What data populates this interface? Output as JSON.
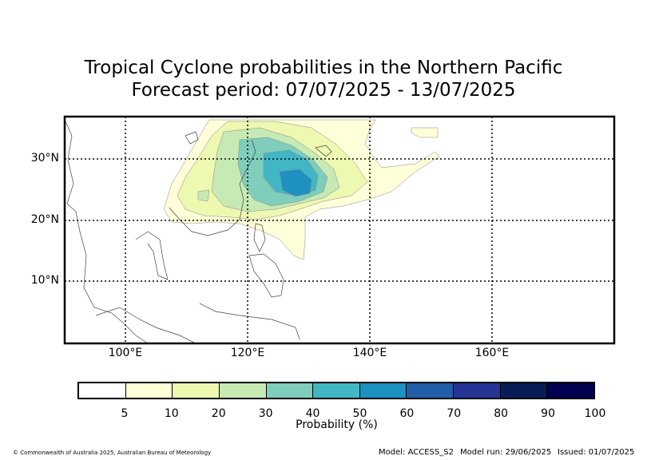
{
  "title_line1": "Tropical Cyclone probabilities in the Northern Pacific",
  "title_line2": "Forecast period: 07/07/2025 - 13/07/2025",
  "map": {
    "lat_ticks": [
      "30°N",
      "20°N",
      "10°N"
    ],
    "lon_ticks": [
      "100°E",
      "120°E",
      "140°E",
      "160°E"
    ],
    "extent": {
      "lon_min": 90,
      "lon_max": 180,
      "lat_min": 0,
      "lat_max": 37
    }
  },
  "colorbar": {
    "colors": [
      "#ffffff",
      "#ffffd9",
      "#edf8b1",
      "#c7e9b4",
      "#7fcdbb",
      "#41b6c4",
      "#1d91c0",
      "#225ea8",
      "#253494",
      "#081d58",
      "#000050"
    ],
    "ticks": [
      "5",
      "10",
      "20",
      "30",
      "40",
      "50",
      "60",
      "70",
      "80",
      "90",
      "100"
    ],
    "label": "Probability (%)"
  },
  "footer": {
    "copyright": "© Commonwealth of Australia 2025, Australian Bureau of Meteorology",
    "model": "Model: ACCESS_S2",
    "model_run": "Model run: 29/06/2025",
    "issued": "Issued: 01/07/2025"
  }
}
